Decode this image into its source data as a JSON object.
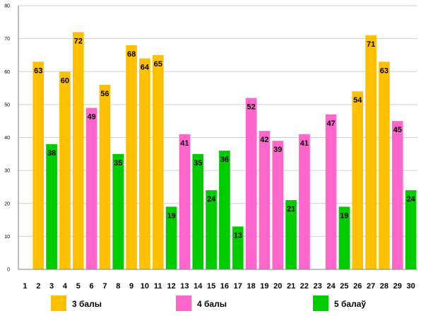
{
  "chart_data": {
    "type": "bar",
    "categories": [
      "1",
      "2",
      "3",
      "4",
      "5",
      "6",
      "7",
      "8",
      "9",
      "10",
      "11",
      "12",
      "13",
      "14",
      "15",
      "16",
      "17",
      "18",
      "19",
      "20",
      "21",
      "22",
      "23",
      "24",
      "25",
      "26",
      "27",
      "28",
      "29",
      "30"
    ],
    "values": [
      null,
      63,
      38,
      60,
      72,
      49,
      56,
      35,
      68,
      64,
      65,
      19,
      41,
      35,
      24,
      36,
      13,
      52,
      42,
      39,
      21,
      41,
      null,
      47,
      19,
      54,
      71,
      63,
      45,
      24
    ],
    "classes": [
      "",
      "3",
      "5",
      "3",
      "3",
      "4",
      "3",
      "5",
      "3",
      "3",
      "3",
      "5",
      "4",
      "5",
      "5",
      "5",
      "5",
      "4",
      "4",
      "4",
      "5",
      "4",
      "",
      "4",
      "5",
      "3",
      "3",
      "3",
      "4",
      "5"
    ],
    "series": [
      {
        "key": "3",
        "name": "3 балы",
        "color": "#FFC000"
      },
      {
        "key": "4",
        "name": "4 балы",
        "color": "#FF66CC"
      },
      {
        "key": "5",
        "name": "5 балаў",
        "color": "#00CC00"
      }
    ],
    "yticks": [
      0,
      10,
      20,
      30,
      40,
      50,
      60,
      70,
      80
    ],
    "ylim": [
      0,
      80
    ],
    "grid": true,
    "legend_position": "bottom"
  }
}
